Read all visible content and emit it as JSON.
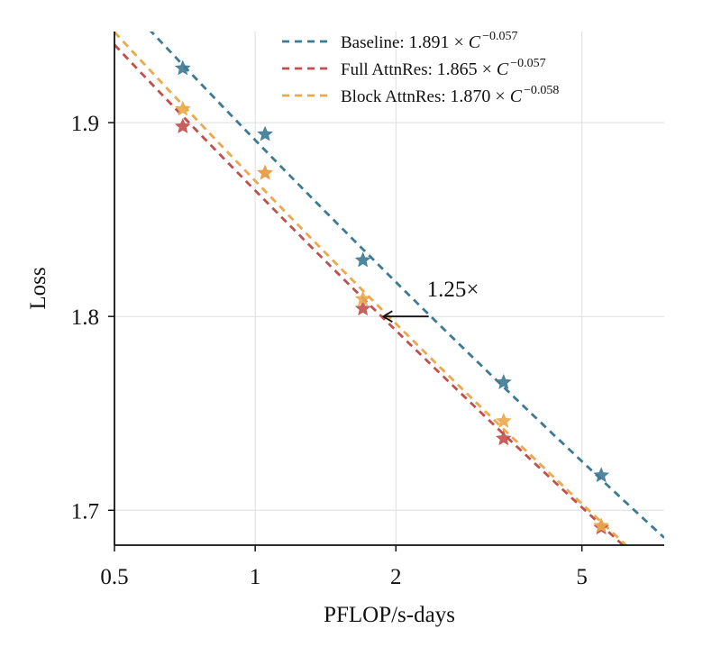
{
  "chart_data": {
    "type": "scatter",
    "xscale": "log",
    "xlabel": "PFLOP/s-days",
    "ylabel": "Loss",
    "xlim": [
      0.5,
      7.5
    ],
    "ylim": [
      1.682,
      1.947
    ],
    "xticks": [
      {
        "value": 0.5,
        "label": "0.5"
      },
      {
        "value": 1,
        "label": "1"
      },
      {
        "value": 2,
        "label": "2"
      },
      {
        "value": 5,
        "label": "5"
      }
    ],
    "yticks": [
      {
        "value": 1.7,
        "label": "1.7"
      },
      {
        "value": 1.8,
        "label": "1.8"
      },
      {
        "value": 1.9,
        "label": "1.9"
      }
    ],
    "grid": true,
    "legend": "top-right",
    "series": [
      {
        "name": "Baseline",
        "color": "#3d7a94",
        "coef": 1.891,
        "exponent": -0.057,
        "label_text": "Baseline: ",
        "formula": {
          "coef": "1.891",
          "times": "×",
          "var": "C",
          "exp": "−0.057"
        },
        "x": [
          0.7,
          1.05,
          1.7,
          3.4,
          5.5
        ],
        "y": [
          1.928,
          1.894,
          1.829,
          1.766,
          1.718
        ]
      },
      {
        "name": "Full AttnRes",
        "color": "#c0504d",
        "coef": 1.865,
        "exponent": -0.057,
        "label_text": "Full AttnRes: ",
        "formula": {
          "coef": "1.865",
          "times": "×",
          "var": "C",
          "exp": "−0.057"
        },
        "x": [
          0.7,
          1.05,
          1.7,
          3.4,
          5.5
        ],
        "y": [
          1.898,
          1.874,
          1.804,
          1.737,
          1.691
        ]
      },
      {
        "name": "Block AttnRes",
        "color": "#e9a94c",
        "coef": 1.87,
        "exponent": -0.058,
        "label_text": "Block AttnRes: ",
        "formula": {
          "coef": "1.870",
          "times": "×",
          "var": "C",
          "exp": "−0.058"
        },
        "x": [
          0.7,
          1.05,
          1.7,
          3.4,
          5.5
        ],
        "y": [
          1.907,
          1.874,
          1.809,
          1.746,
          1.692
        ]
      }
    ],
    "annotation": {
      "text": "1.25×",
      "arrow_y": 1.8,
      "arrow_x_start": 2.35,
      "arrow_x_end": 1.88
    }
  }
}
